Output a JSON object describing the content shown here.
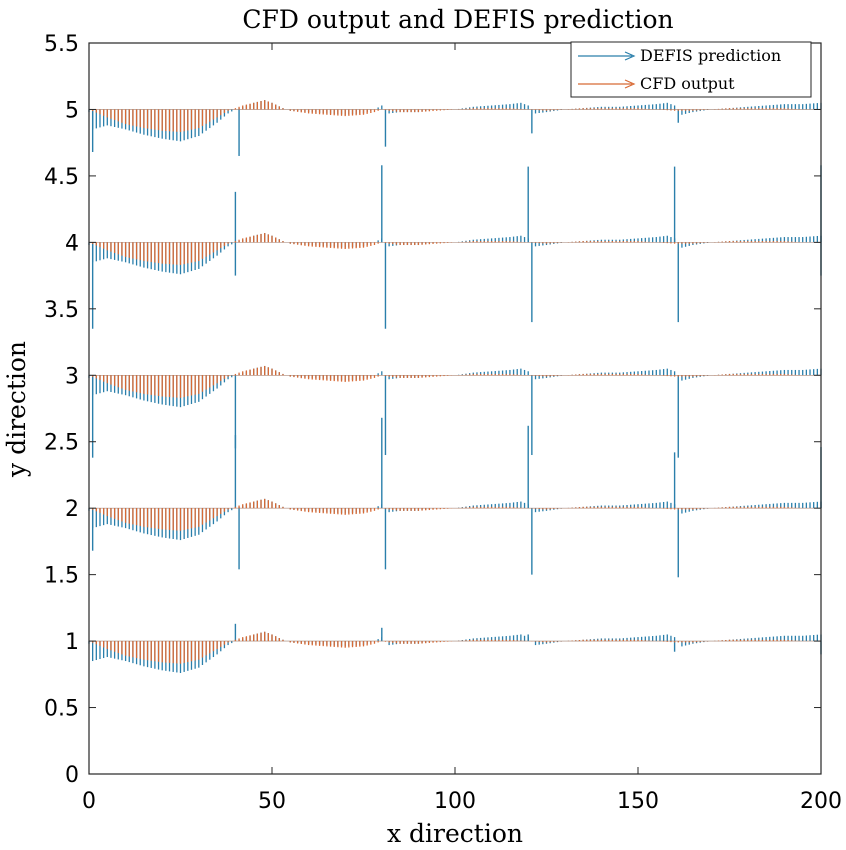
{
  "chart_data": {
    "type": "quiver",
    "title": "CFD output and DEFIS prediction",
    "xlabel": "x direction",
    "ylabel": "y direction",
    "xlim": [
      0,
      200
    ],
    "ylim": [
      0,
      5.5
    ],
    "xticks": [
      0,
      50,
      100,
      150,
      200
    ],
    "xtick_labels": [
      "0",
      "50",
      "100",
      "150",
      "200"
    ],
    "yticks": [
      0,
      0.5,
      1,
      1.5,
      2,
      2.5,
      3,
      3.5,
      4,
      4.5,
      5,
      5.5
    ],
    "ytick_labels": [
      "0",
      "0.5",
      "1",
      "1.5",
      "2",
      "2.5",
      "3",
      "3.5",
      "4",
      "4.5",
      "5",
      "5.5"
    ],
    "grid": false,
    "box": true,
    "legend_position": "top-right",
    "x_spacing": 1,
    "x_range": [
      0,
      200
    ],
    "rows": [
      1,
      2,
      3,
      4,
      5
    ],
    "series": [
      {
        "name": "DEFIS prediction",
        "color": "#2a7fab",
        "profile": [
          [
            0,
            -0.02
          ],
          [
            1,
            -0.15
          ],
          [
            5,
            -0.12
          ],
          [
            10,
            -0.15
          ],
          [
            15,
            -0.19
          ],
          [
            20,
            -0.22
          ],
          [
            25,
            -0.24
          ],
          [
            30,
            -0.2
          ],
          [
            35,
            -0.1
          ],
          [
            38,
            -0.03
          ],
          [
            40,
            0.0
          ],
          [
            42,
            0.02
          ],
          [
            45,
            0.05
          ],
          [
            48,
            0.07
          ],
          [
            50,
            0.05
          ],
          [
            53,
            0.01
          ],
          [
            55,
            -0.01
          ],
          [
            60,
            -0.02
          ],
          [
            65,
            -0.03
          ],
          [
            70,
            -0.04
          ],
          [
            75,
            -0.03
          ],
          [
            78,
            0.0
          ],
          [
            80,
            0.03
          ],
          [
            82,
            -0.03
          ],
          [
            85,
            -0.02
          ],
          [
            90,
            -0.02
          ],
          [
            95,
            0.0
          ],
          [
            100,
            0.0
          ],
          [
            105,
            0.02
          ],
          [
            110,
            0.03
          ],
          [
            115,
            0.04
          ],
          [
            118,
            0.05
          ],
          [
            120,
            0.03
          ],
          [
            122,
            -0.03
          ],
          [
            125,
            -0.02
          ],
          [
            130,
            0.0
          ],
          [
            135,
            0.01
          ],
          [
            140,
            0.02
          ],
          [
            145,
            0.02
          ],
          [
            150,
            0.03
          ],
          [
            155,
            0.04
          ],
          [
            158,
            0.05
          ],
          [
            160,
            0.03
          ],
          [
            162,
            -0.04
          ],
          [
            165,
            -0.02
          ],
          [
            170,
            0.0
          ],
          [
            175,
            0.01
          ],
          [
            180,
            0.02
          ],
          [
            185,
            0.03
          ],
          [
            190,
            0.04
          ],
          [
            195,
            0.04
          ],
          [
            200,
            0.05
          ]
        ],
        "spikes": [
          {
            "x": 1,
            "row": 5,
            "dy": -0.32
          },
          {
            "x": 41,
            "row": 5,
            "dy": -0.35
          },
          {
            "x": 81,
            "row": 5,
            "dy": -0.28
          },
          {
            "x": 121,
            "row": 5,
            "dy": -0.18
          },
          {
            "x": 161,
            "row": 5,
            "dy": -0.1
          },
          {
            "x": 1,
            "row": 4,
            "dy": -0.65
          },
          {
            "x": 40,
            "row": 4,
            "dy": 0.38
          },
          {
            "x": 80,
            "row": 4,
            "dy": 0.58
          },
          {
            "x": 120,
            "row": 4,
            "dy": 0.57
          },
          {
            "x": 160,
            "row": 4,
            "dy": 0.57
          },
          {
            "x": 200,
            "row": 4,
            "dy": 0.58
          },
          {
            "x": 40,
            "row": 4,
            "dy": -0.25
          },
          {
            "x": 81,
            "row": 4,
            "dy": -0.65
          },
          {
            "x": 121,
            "row": 4,
            "dy": -0.6
          },
          {
            "x": 161,
            "row": 4,
            "dy": -0.6
          },
          {
            "x": 200,
            "row": 4,
            "dy": -0.25
          },
          {
            "x": 1,
            "row": 3,
            "dy": -0.62
          },
          {
            "x": 40,
            "row": 3,
            "dy": -0.55
          },
          {
            "x": 81,
            "row": 3,
            "dy": -0.6
          },
          {
            "x": 121,
            "row": 3,
            "dy": -0.6
          },
          {
            "x": 161,
            "row": 3,
            "dy": -0.62
          },
          {
            "x": 40,
            "row": 2,
            "dy": 0.55
          },
          {
            "x": 80,
            "row": 2,
            "dy": 0.68
          },
          {
            "x": 120,
            "row": 2,
            "dy": 0.62
          },
          {
            "x": 160,
            "row": 2,
            "dy": 0.42
          },
          {
            "x": 200,
            "row": 2,
            "dy": 0.46
          },
          {
            "x": 1,
            "row": 2,
            "dy": -0.32
          },
          {
            "x": 41,
            "row": 2,
            "dy": -0.46
          },
          {
            "x": 81,
            "row": 2,
            "dy": -0.46
          },
          {
            "x": 121,
            "row": 2,
            "dy": -0.5
          },
          {
            "x": 161,
            "row": 2,
            "dy": -0.52
          },
          {
            "x": 40,
            "row": 1,
            "dy": 0.13
          },
          {
            "x": 80,
            "row": 1,
            "dy": 0.1
          },
          {
            "x": 120,
            "row": 1,
            "dy": 0.05
          },
          {
            "x": 160,
            "row": 1,
            "dy": -0.08
          },
          {
            "x": 200,
            "row": 1,
            "dy": -0.1
          }
        ]
      },
      {
        "name": "CFD output",
        "color": "#d86a35",
        "profile": [
          [
            0,
            0.0
          ],
          [
            5,
            -0.06
          ],
          [
            10,
            -0.11
          ],
          [
            15,
            -0.14
          ],
          [
            20,
            -0.16
          ],
          [
            25,
            -0.17
          ],
          [
            30,
            -0.14
          ],
          [
            35,
            -0.06
          ],
          [
            38,
            -0.01
          ],
          [
            40,
            0.01
          ],
          [
            42,
            0.03
          ],
          [
            45,
            0.05
          ],
          [
            48,
            0.07
          ],
          [
            50,
            0.05
          ],
          [
            53,
            0.01
          ],
          [
            55,
            -0.01
          ],
          [
            60,
            -0.03
          ],
          [
            65,
            -0.04
          ],
          [
            70,
            -0.05
          ],
          [
            75,
            -0.04
          ],
          [
            78,
            -0.02
          ],
          [
            80,
            0.0
          ],
          [
            82,
            -0.01
          ],
          [
            85,
            -0.02
          ],
          [
            90,
            -0.02
          ],
          [
            95,
            -0.01
          ],
          [
            100,
            0.0
          ],
          [
            105,
            0.01
          ],
          [
            110,
            0.01
          ],
          [
            115,
            0.01
          ],
          [
            120,
            0.0
          ],
          [
            125,
            -0.01
          ],
          [
            130,
            0.0
          ],
          [
            135,
            0.01
          ],
          [
            140,
            0.01
          ],
          [
            145,
            0.01
          ],
          [
            150,
            0.01
          ],
          [
            155,
            0.0
          ],
          [
            160,
            -0.01
          ],
          [
            165,
            -0.01
          ],
          [
            170,
            0.0
          ],
          [
            175,
            0.01
          ],
          [
            180,
            0.01
          ],
          [
            185,
            0.01
          ],
          [
            190,
            0.01
          ],
          [
            195,
            0.0
          ],
          [
            200,
            0.0
          ]
        ],
        "spikes": []
      }
    ]
  }
}
